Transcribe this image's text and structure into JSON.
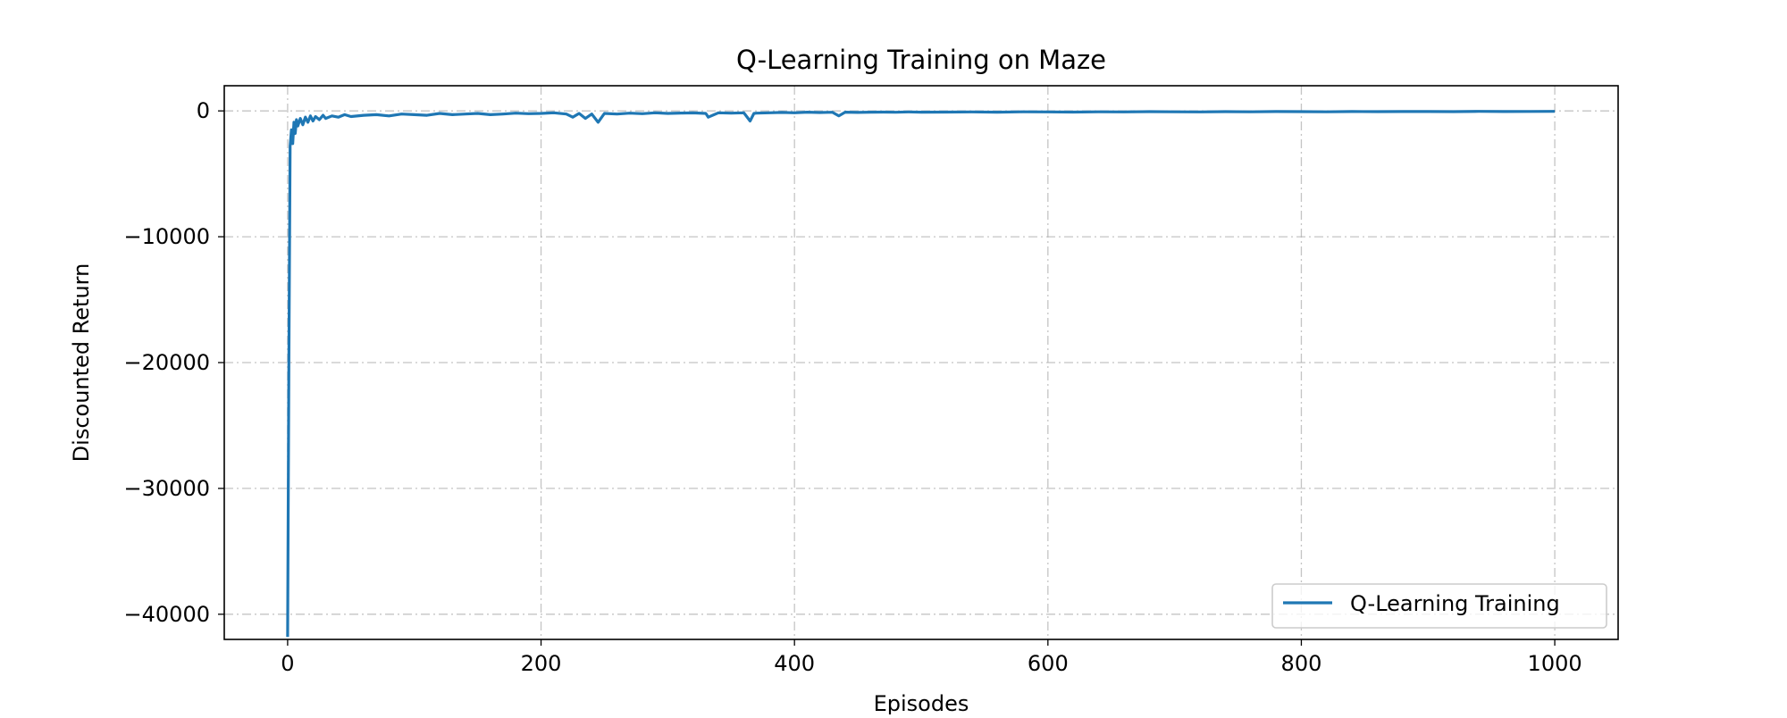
{
  "chart_data": {
    "type": "line",
    "title": "Q-Learning Training on Maze",
    "xlabel": "Episodes",
    "ylabel": "Discounted Return",
    "xlim": [
      -50,
      1050
    ],
    "ylim": [
      -42000,
      2000
    ],
    "xticks": [
      0,
      200,
      400,
      600,
      800,
      1000
    ],
    "xtick_labels": [
      "0",
      "200",
      "400",
      "600",
      "800",
      "1000"
    ],
    "yticks": [
      0,
      -10000,
      -20000,
      -30000,
      -40000
    ],
    "ytick_labels": [
      "0",
      "−10000",
      "−20000",
      "−30000",
      "−40000"
    ],
    "grid": true,
    "legend_position": "lower-right",
    "series": [
      {
        "name": "Q-Learning Training",
        "color": "#1f77b4",
        "x": [
          0,
          1,
          2,
          3,
          4,
          5,
          6,
          7,
          8,
          10,
          12,
          14,
          16,
          18,
          20,
          22,
          25,
          28,
          30,
          35,
          40,
          45,
          50,
          60,
          70,
          80,
          90,
          100,
          110,
          120,
          130,
          140,
          150,
          160,
          170,
          180,
          190,
          200,
          210,
          220,
          225,
          230,
          235,
          240,
          245,
          250,
          260,
          270,
          280,
          290,
          300,
          310,
          320,
          330,
          332,
          340,
          350,
          360,
          365,
          368,
          370,
          380,
          390,
          400,
          410,
          420,
          430,
          435,
          440,
          450,
          460,
          470,
          480,
          490,
          500,
          520,
          540,
          560,
          580,
          600,
          620,
          640,
          660,
          680,
          700,
          720,
          740,
          760,
          780,
          800,
          820,
          840,
          860,
          880,
          900,
          920,
          940,
          960,
          980,
          1000
        ],
        "y": [
          -41800,
          -20000,
          -2800,
          -1500,
          -2600,
          -900,
          -1800,
          -700,
          -1200,
          -600,
          -1100,
          -500,
          -900,
          -400,
          -800,
          -450,
          -700,
          -350,
          -600,
          -400,
          -500,
          -300,
          -450,
          -350,
          -300,
          -400,
          -250,
          -300,
          -350,
          -200,
          -300,
          -250,
          -200,
          -300,
          -250,
          -180,
          -220,
          -200,
          -150,
          -250,
          -500,
          -200,
          -600,
          -250,
          -900,
          -200,
          -250,
          -180,
          -220,
          -150,
          -200,
          -170,
          -160,
          -200,
          -500,
          -150,
          -180,
          -150,
          -800,
          -200,
          -180,
          -150,
          -120,
          -150,
          -100,
          -130,
          -110,
          -400,
          -100,
          -120,
          -100,
          -90,
          -110,
          -80,
          -100,
          -90,
          -80,
          -100,
          -70,
          -80,
          -90,
          -70,
          -80,
          -60,
          -70,
          -80,
          -60,
          -70,
          -50,
          -60,
          -70,
          -50,
          -60,
          -50,
          -50,
          -60,
          -40,
          -50,
          -45,
          -40
        ]
      }
    ]
  }
}
